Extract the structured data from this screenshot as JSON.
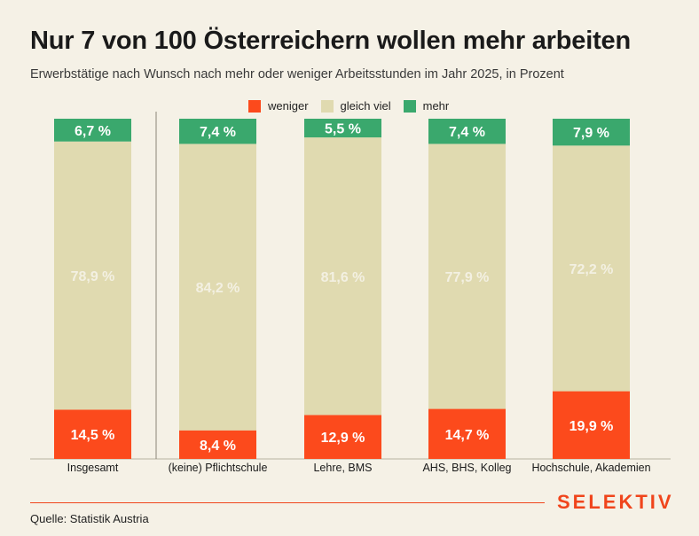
{
  "title": "Nur 7 von 100 Österreichern wollen mehr arbeiten",
  "subtitle": "Erwerbstätige nach Wunsch nach mehr oder weniger Arbeitsstunden im Jahr 2025, in Prozent",
  "source": "Quelle: Statistik Austria",
  "brand": "SELEKTIV",
  "colors": {
    "weniger": "#fc4a1c",
    "gleich_viel": "#e0dab0",
    "mehr": "#3aa86d",
    "accent": "#f0451c",
    "background": "#f5f1e6"
  },
  "legend": [
    {
      "key": "weniger",
      "label": "weniger"
    },
    {
      "key": "gleich_viel",
      "label": "gleich viel"
    },
    {
      "key": "mehr",
      "label": "mehr"
    }
  ],
  "chart_data": {
    "type": "bar",
    "stacked": true,
    "ylim": [
      0,
      100
    ],
    "categories": [
      "Insgesamt",
      "(keine) Pflichtschule",
      "Lehre, BMS",
      "AHS, BHS, Kolleg",
      "Hochschule, Akademien"
    ],
    "series": [
      {
        "name": "weniger",
        "values": [
          14.5,
          8.4,
          12.9,
          14.7,
          19.9
        ],
        "labels": [
          "14,5 %",
          "8,4 %",
          "12,9 %",
          "14,7 %",
          "19,9 %"
        ]
      },
      {
        "name": "gleich viel",
        "values": [
          78.9,
          84.2,
          81.6,
          77.9,
          72.2
        ],
        "labels": [
          "78,9 %",
          "84,2 %",
          "81,6 %",
          "77,9 %",
          "72,2 %"
        ]
      },
      {
        "name": "mehr",
        "values": [
          6.7,
          7.4,
          5.5,
          7.4,
          7.9
        ],
        "labels": [
          "6,7 %",
          "7,4 %",
          "5,5 %",
          "7,4 %",
          "7,9 %"
        ]
      }
    ],
    "legend_position": "top",
    "grid": false
  }
}
